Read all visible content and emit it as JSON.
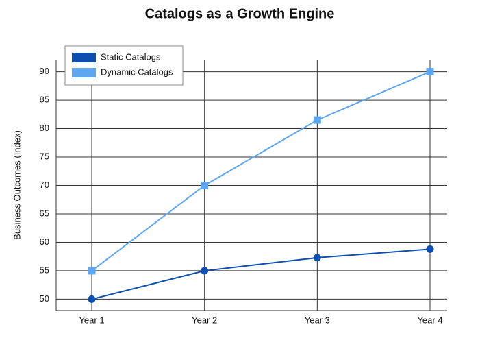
{
  "chart_data": {
    "type": "line",
    "title": "Catalogs as a Growth Engine",
    "y_label": "Business Outcomes (Index)",
    "categories": [
      "Year 1",
      "Year 2",
      "Year 3",
      "Year 4"
    ],
    "series": [
      {
        "name": "Static Catalogs",
        "color": "#0d4fae",
        "marker": "circle",
        "values": [
          50,
          55,
          57.3,
          58.8
        ]
      },
      {
        "name": "Dynamic Catalogs",
        "color": "#5ea6f0",
        "marker": "square",
        "values": [
          55,
          70,
          81.5,
          90
        ]
      }
    ],
    "ylim": [
      48,
      92
    ],
    "yticks": [
      50,
      55,
      60,
      65,
      70,
      75,
      80,
      85,
      90
    ],
    "grid": true,
    "legend": "top-left"
  }
}
